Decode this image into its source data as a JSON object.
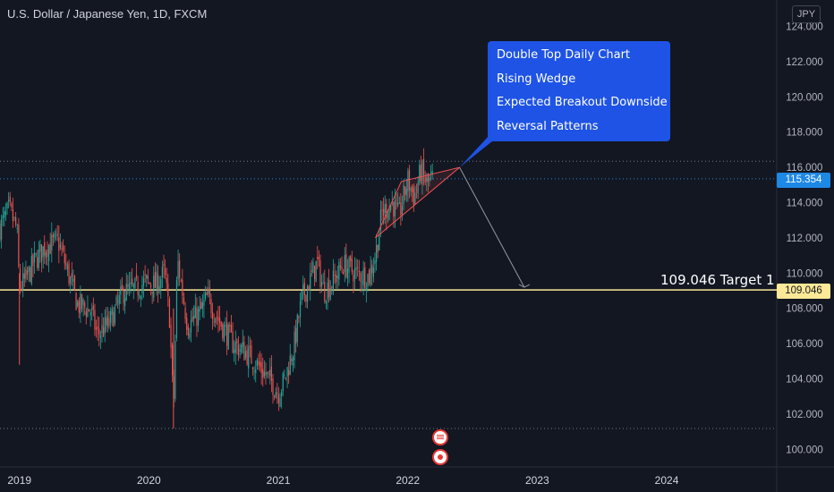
{
  "header": {
    "symbol_title": "U.S. Dollar / Japanese Yen, 1D, FXCM",
    "currency": "JPY"
  },
  "annotation": {
    "lines": [
      "Double Top Daily Chart",
      "Rising Wedge",
      "Expected Breakout Downside",
      "Reversal Patterns"
    ]
  },
  "target_label": "109.046 Target 1",
  "price_tags": {
    "current": "115.354",
    "target": "109.046"
  },
  "colors": {
    "background": "#131722",
    "up_candle": "#26a69a",
    "down_candle": "#ef5350",
    "target_line": "#fce896",
    "current_line": "#1e88e5",
    "note_box": "#1e53e5"
  },
  "icons": {
    "event_1": "us-flag-icon",
    "event_2": "target-dot-icon"
  },
  "chart_data": {
    "type": "candlestick",
    "title": "U.S. Dollar / Japanese Yen, 1D, FXCM",
    "x_ticks": [
      "2019",
      "2020",
      "2021",
      "2022",
      "2023",
      "2024"
    ],
    "y_ticks": [
      100,
      102,
      104,
      106,
      108,
      110,
      112,
      114,
      116,
      118,
      120,
      122,
      124
    ],
    "ylim": [
      99,
      125.5
    ],
    "xlim": [
      2018.85,
      2024.85
    ],
    "x_unit": "year",
    "reference_lines": [
      {
        "name": "current",
        "value": 115.354,
        "style": "dotted"
      },
      {
        "name": "target",
        "value": 109.046,
        "style": "solid"
      },
      {
        "name": "resistance",
        "value": 116.35,
        "style": "dotted"
      },
      {
        "name": "low",
        "value": 101.18,
        "style": "dotted"
      }
    ],
    "wedge": {
      "upper": [
        [
          2021.95,
          115.2
        ],
        [
          2022.4,
          116.0
        ]
      ],
      "lower": [
        [
          2021.75,
          112.0
        ],
        [
          2022.4,
          116.0
        ]
      ]
    },
    "projection_arrow": [
      [
        2022.4,
        116.0
      ],
      [
        2022.9,
        109.2
      ]
    ],
    "price_path": [
      [
        2018.85,
        112.6
      ],
      [
        2018.92,
        113.6
      ],
      [
        2018.98,
        112.5
      ],
      [
        2019.0,
        109.2
      ],
      [
        2019.05,
        109.6
      ],
      [
        2019.12,
        110.7
      ],
      [
        2019.2,
        111.5
      ],
      [
        2019.3,
        111.8
      ],
      [
        2019.38,
        109.9
      ],
      [
        2019.45,
        108.2
      ],
      [
        2019.55,
        107.9
      ],
      [
        2019.6,
        106.5
      ],
      [
        2019.7,
        107.2
      ],
      [
        2019.8,
        108.9
      ],
      [
        2019.9,
        109.1
      ],
      [
        2019.97,
        109.5
      ],
      [
        2020.05,
        109.3
      ],
      [
        2020.12,
        110.0
      ],
      [
        2020.16,
        107.5
      ],
      [
        2020.19,
        102.2
      ],
      [
        2020.22,
        110.8
      ],
      [
        2020.3,
        107.0
      ],
      [
        2020.4,
        107.8
      ],
      [
        2020.45,
        108.6
      ],
      [
        2020.55,
        107.2
      ],
      [
        2020.65,
        106.0
      ],
      [
        2020.75,
        105.5
      ],
      [
        2020.85,
        104.7
      ],
      [
        2020.95,
        103.8
      ],
      [
        2021.0,
        103.2
      ],
      [
        2021.05,
        104.0
      ],
      [
        2021.12,
        105.8
      ],
      [
        2021.18,
        108.5
      ],
      [
        2021.25,
        109.7
      ],
      [
        2021.3,
        110.6
      ],
      [
        2021.35,
        109.0
      ],
      [
        2021.42,
        109.5
      ],
      [
        2021.5,
        110.5
      ],
      [
        2021.6,
        110.0
      ],
      [
        2021.7,
        109.8
      ],
      [
        2021.75,
        111.0
      ],
      [
        2021.8,
        113.4
      ],
      [
        2021.88,
        114.0
      ],
      [
        2021.93,
        113.2
      ],
      [
        2022.0,
        115.3
      ],
      [
        2022.05,
        114.3
      ],
      [
        2022.1,
        115.8
      ],
      [
        2022.15,
        115.0
      ],
      [
        2022.19,
        115.4
      ]
    ]
  }
}
